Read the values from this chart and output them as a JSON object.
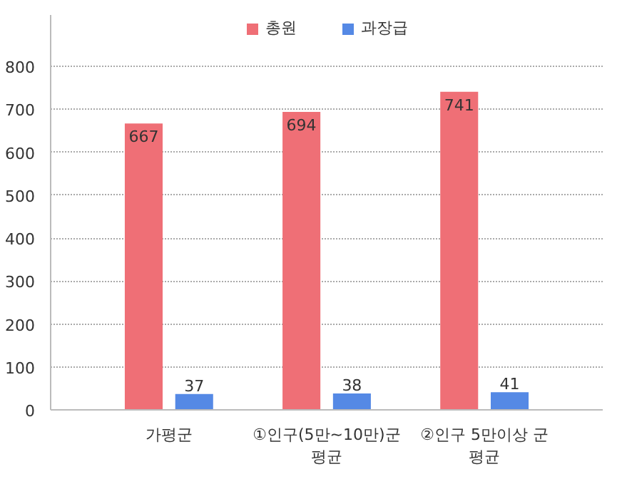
{
  "chart_data": {
    "type": "bar",
    "categories": [
      "가평군",
      "①인구(5만~10만)군 평균",
      "②인구 5만이상 군 평균"
    ],
    "series": [
      {
        "name": "총원",
        "color": "#ef6f76",
        "values": [
          667,
          694,
          741
        ]
      },
      {
        "name": "과장급",
        "color": "#5589e5",
        "values": [
          37,
          38,
          41
        ]
      }
    ],
    "ylim": [
      0,
      920
    ],
    "yticks": [
      0,
      100,
      200,
      300,
      400,
      500,
      600,
      700,
      800
    ],
    "grid": "y",
    "legend": "top",
    "data_labels": true
  }
}
